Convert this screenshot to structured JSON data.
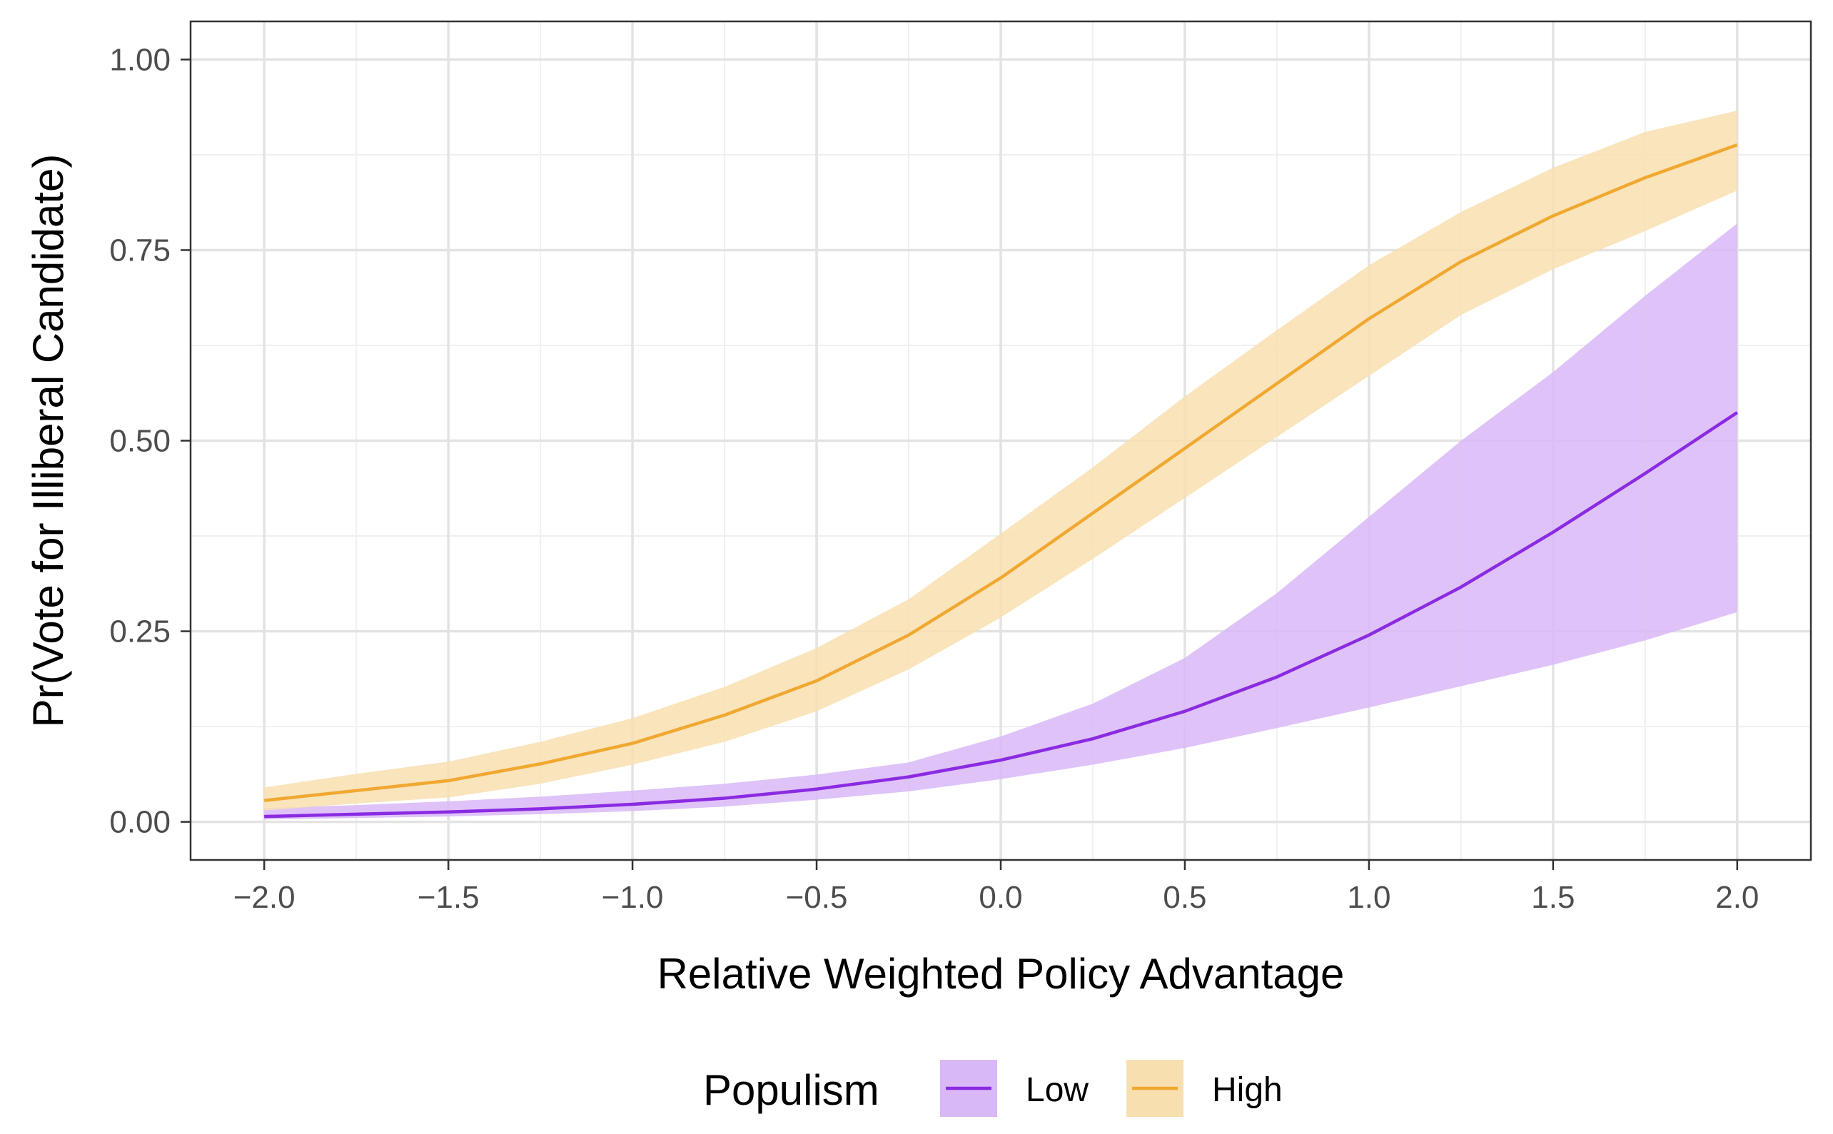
{
  "chart_data": {
    "type": "line",
    "title": "",
    "xlabel": "Relative Weighted Policy Advantage",
    "ylabel": "Pr(Vote for Illiberal Candidate)",
    "xlim": [
      -2.2,
      2.2
    ],
    "ylim": [
      -0.05,
      1.05
    ],
    "x_ticks": [
      -2.0,
      -1.5,
      -1.0,
      -0.5,
      0.0,
      0.5,
      1.0,
      1.5,
      2.0
    ],
    "x_tick_labels": [
      "−2.0",
      "−1.5",
      "−1.0",
      "−0.5",
      "0.0",
      "0.5",
      "1.0",
      "1.5",
      "2.0"
    ],
    "y_ticks": [
      0.0,
      0.25,
      0.5,
      0.75,
      1.0
    ],
    "y_tick_labels": [
      "0.00",
      "0.25",
      "0.50",
      "0.75",
      "1.00"
    ],
    "grid": true,
    "legend": {
      "title": "Populism",
      "position": "bottom"
    },
    "x": [
      -2.0,
      -1.75,
      -1.5,
      -1.25,
      -1.0,
      -0.75,
      -0.5,
      -0.25,
      0.0,
      0.25,
      0.5,
      0.75,
      1.0,
      1.25,
      1.5,
      1.75,
      2.0
    ],
    "series": [
      {
        "name": "Low",
        "line_color": "#8a2be2",
        "fill_color": "#d9b8f7",
        "values": [
          0.007,
          0.01,
          0.013,
          0.017,
          0.023,
          0.031,
          0.043,
          0.059,
          0.081,
          0.109,
          0.145,
          0.19,
          0.245,
          0.308,
          0.38,
          0.457,
          0.537
        ],
        "lower": [
          0.003,
          0.005,
          0.007,
          0.01,
          0.014,
          0.02,
          0.029,
          0.04,
          0.056,
          0.075,
          0.097,
          0.123,
          0.15,
          0.178,
          0.206,
          0.238,
          0.275
        ],
        "upper": [
          0.018,
          0.022,
          0.027,
          0.033,
          0.041,
          0.05,
          0.062,
          0.078,
          0.112,
          0.155,
          0.215,
          0.3,
          0.4,
          0.5,
          0.59,
          0.69,
          0.785
        ]
      },
      {
        "name": "High",
        "line_color": "#f0a830",
        "fill_color": "#f8dfb0",
        "values": [
          0.028,
          0.041,
          0.054,
          0.076,
          0.103,
          0.14,
          0.185,
          0.245,
          0.32,
          0.405,
          0.49,
          0.575,
          0.66,
          0.735,
          0.795,
          0.845,
          0.888
        ],
        "lower": [
          0.015,
          0.024,
          0.032,
          0.05,
          0.075,
          0.105,
          0.145,
          0.2,
          0.268,
          0.345,
          0.425,
          0.505,
          0.585,
          0.665,
          0.725,
          0.775,
          0.828
        ],
        "upper": [
          0.045,
          0.063,
          0.079,
          0.105,
          0.136,
          0.177,
          0.228,
          0.292,
          0.378,
          0.465,
          0.558,
          0.645,
          0.73,
          0.8,
          0.858,
          0.905,
          0.933
        ]
      }
    ]
  }
}
